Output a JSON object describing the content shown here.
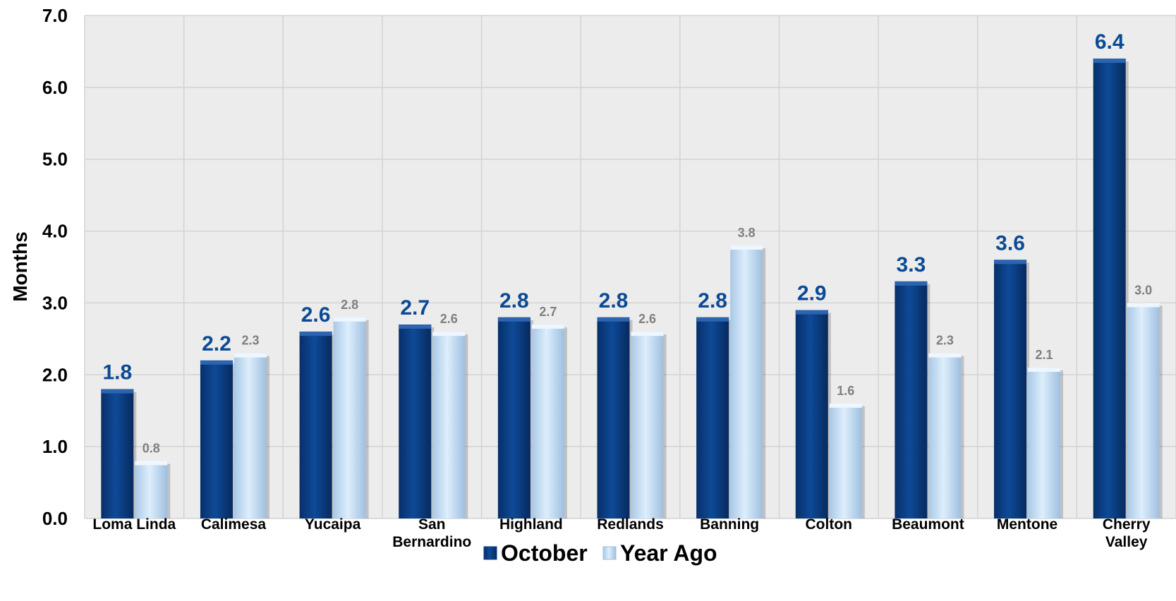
{
  "chart_data": {
    "type": "bar",
    "ylabel": "Months",
    "ylim": [
      0,
      7
    ],
    "yticks": [
      "0.0",
      "1.0",
      "2.0",
      "3.0",
      "4.0",
      "5.0",
      "6.0",
      "7.0"
    ],
    "grid": true,
    "legend_position": "bottom",
    "categories": [
      [
        "Loma Linda"
      ],
      [
        "Calimesa"
      ],
      [
        "Yucaipa"
      ],
      [
        "San",
        "Bernardino"
      ],
      [
        "Highland"
      ],
      [
        "Redlands"
      ],
      [
        "Banning"
      ],
      [
        "Colton"
      ],
      [
        "Beaumont"
      ],
      [
        "Mentone"
      ],
      [
        "Cherry",
        "Valley"
      ]
    ],
    "series": [
      {
        "name": "October",
        "color": "#0b3f86",
        "label_color": "#0b4a94",
        "values": [
          1.8,
          2.2,
          2.6,
          2.7,
          2.8,
          2.8,
          2.8,
          2.9,
          3.3,
          3.6,
          6.4
        ],
        "labels": [
          "1.8",
          "2.2",
          "2.6",
          "2.7",
          "2.8",
          "2.8",
          "2.8",
          "2.9",
          "3.3",
          "3.6",
          "6.4"
        ]
      },
      {
        "name": "Year Ago",
        "color": "#c9e0f5",
        "label_color": "#7f7f7f",
        "values": [
          0.8,
          2.3,
          2.8,
          2.6,
          2.7,
          2.6,
          3.8,
          1.6,
          2.3,
          2.1,
          3.0
        ],
        "labels": [
          "0.8",
          "2.3",
          "2.8",
          "2.6",
          "2.7",
          "2.6",
          "3.8",
          "1.6",
          "2.3",
          "2.1",
          "3.0"
        ]
      }
    ]
  }
}
